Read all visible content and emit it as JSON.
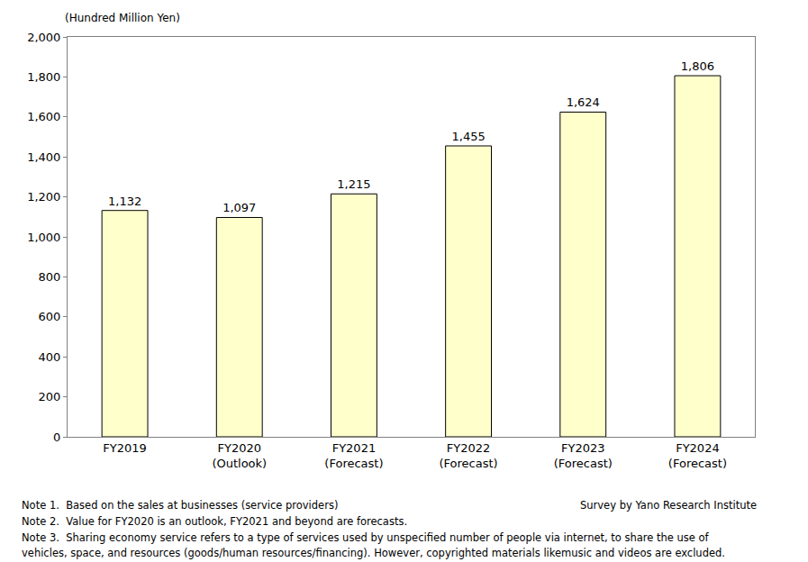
{
  "chart_data": {
    "type": "bar",
    "y_label": "(Hundred Million Yen)",
    "categories": [
      "FY2019",
      "FY2020 (Outlook)",
      "FY2021 (Forecast)",
      "FY2022 (Forecast)",
      "FY2023 (Forecast)",
      "FY2024 (Forecast)"
    ],
    "values": [
      1132,
      1097,
      1215,
      1455,
      1624,
      1806
    ],
    "value_labels": [
      "1,132",
      "1,097",
      "1,215",
      "1,455",
      "1,624",
      "1,806"
    ],
    "color": "#ffffcc",
    "data_labels": true,
    "grid": false,
    "ylim": [
      0,
      2000
    ],
    "yticks": [
      0,
      200,
      400,
      600,
      800,
      {
        "value": 1000,
        "label": "1,000"
      },
      {
        "value": 1200,
        "label": "1,200"
      },
      {
        "value": 1400,
        "label": "1,400"
      },
      {
        "value": 1600,
        "label": "1,600"
      },
      {
        "value": 1800,
        "label": "1,800"
      },
      {
        "value": 2000,
        "label": "2,000"
      }
    ],
    "notes": [
      "Note 1.  Based on the sales at businesses (service providers)",
      "Note 2.  Value for FY2020 is an outlook, FY2021 and beyond are forecasts.",
      "Note 3.  Sharing economy service refers to a type of services used by unspecified number of people via internet, to share the use of",
      "vehicles, space, and resources (goods/human resources/financing). However, copyrighted materials likemusic and videos are excluded."
    ],
    "source": "Survey by Yano Research Institute"
  }
}
